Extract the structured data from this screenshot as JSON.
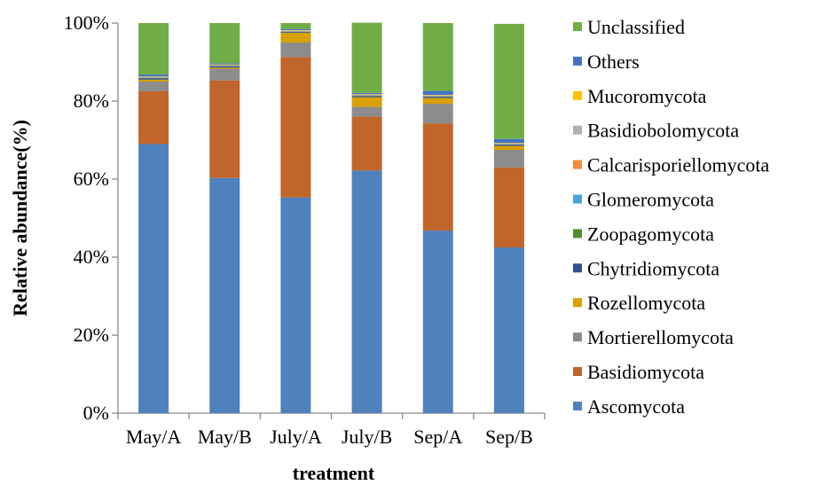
{
  "chart_data": {
    "type": "bar",
    "stacked": true,
    "xlabel": "treatment",
    "ylabel": "Relative abundance(%)",
    "ylim": [
      0,
      100
    ],
    "yticks": [
      "0%",
      "20%",
      "40%",
      "60%",
      "80%",
      "100%"
    ],
    "categories": [
      "May/A",
      "May/B",
      "July/A",
      "July/B",
      "Sep/A",
      "Sep/B"
    ],
    "grid": false,
    "legend_position": "right",
    "series": [
      {
        "name": "Ascomycota",
        "color": "#4F81BD",
        "values": [
          69.0,
          60.3,
          55.3,
          62.2,
          46.8,
          42.5
        ]
      },
      {
        "name": "Basidiomycota",
        "color": "#C0652B",
        "values": [
          13.5,
          25.0,
          36.0,
          13.8,
          27.5,
          20.5
        ]
      },
      {
        "name": "Mortierellomycota",
        "color": "#8C8C8C",
        "values": [
          2.5,
          3.0,
          3.7,
          2.5,
          5.0,
          4.5
        ]
      },
      {
        "name": "Rozellomycota",
        "color": "#D8A000",
        "values": [
          0.5,
          0.3,
          2.5,
          2.5,
          1.5,
          1.0
        ]
      },
      {
        "name": "Chytridiomycota",
        "color": "#2F4F8F",
        "values": [
          0.3,
          0.3,
          0.2,
          0.3,
          0.3,
          0.3
        ]
      },
      {
        "name": "Zoopagomycota",
        "color": "#4E8B30",
        "values": [
          0.1,
          0.1,
          0.1,
          0.1,
          0.1,
          0.1
        ]
      },
      {
        "name": "Glomeromycota",
        "color": "#4BA3DE",
        "values": [
          0.1,
          0.1,
          0.1,
          0.1,
          0.1,
          0.1
        ]
      },
      {
        "name": "Calcarisporiellomycota",
        "color": "#F28B3C",
        "values": [
          0.1,
          0.1,
          0.1,
          0.1,
          0.1,
          0.1
        ]
      },
      {
        "name": "Basidiobolomycota",
        "color": "#B0B0B0",
        "values": [
          0.1,
          0.1,
          0.1,
          0.1,
          0.1,
          0.1
        ]
      },
      {
        "name": "Mucoromycota",
        "color": "#FFC000",
        "values": [
          0.1,
          0.1,
          0.1,
          0.1,
          0.1,
          0.1
        ]
      },
      {
        "name": "Others",
        "color": "#4472C4",
        "values": [
          0.5,
          0.3,
          0.3,
          0.3,
          1.0,
          1.0
        ]
      },
      {
        "name": "Unclassified",
        "color": "#70AD47",
        "values": [
          13.2,
          10.3,
          1.5,
          18.0,
          17.4,
          29.5
        ]
      }
    ]
  }
}
